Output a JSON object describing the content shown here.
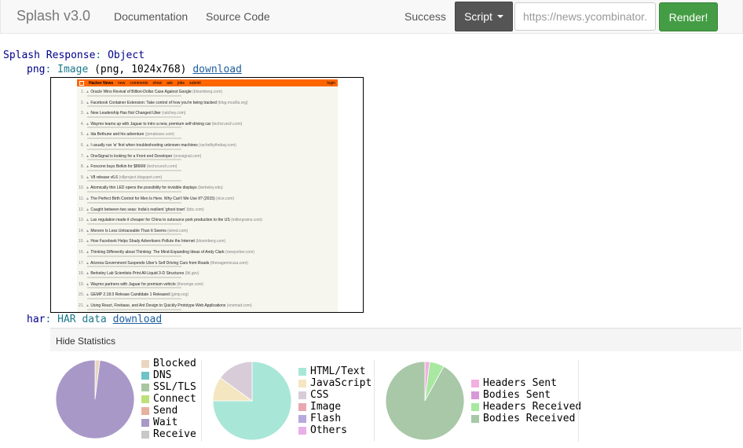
{
  "navbar": {
    "brand": "Splash v3.0",
    "links": [
      "Documentation",
      "Source Code"
    ],
    "status": "Success",
    "script_label": "Script",
    "url_value": "https://news.ycombinator.",
    "render_label": "Render!"
  },
  "response": {
    "title_key": "Splash Response",
    "title_type": "Object",
    "png_key": "png",
    "png_type": "Image",
    "png_meta": "(png, 1024x768)",
    "png_download": "download",
    "har_key": "har",
    "har_type": "HAR data",
    "har_download": "download"
  },
  "screenshot": {
    "nav": [
      "Hacker News",
      "new",
      "comments",
      "show",
      "ask",
      "jobs",
      "submit",
      "login"
    ],
    "items": [
      {
        "rank": "1.",
        "title": "Oracle Wins Revival of Billion-Dollar Case Against Google",
        "site": "(bloomberg.com)"
      },
      {
        "rank": "2.",
        "title": "Facebook Container Extension: Take control of how you're being tracked",
        "site": "(blog.mozilla.org)"
      },
      {
        "rank": "3.",
        "title": "New Leadership Has Not Changed Uber",
        "site": "(ratchey.com)"
      },
      {
        "rank": "4.",
        "title": "Waymo teams up with Jaguar to intro a new, premium self-driving car",
        "site": "(techcrunch.com)"
      },
      {
        "rank": "5.",
        "title": "Ida Bethune and his adventure",
        "site": "(jomalease.com)"
      },
      {
        "rank": "6.",
        "title": "I usually run 'w' first when troubleshooting unknown machines",
        "site": "(rachelbythebay.com)"
      },
      {
        "rank": "7.",
        "title": "OneSignal is looking for a Front end Developer",
        "site": "(onesignal.com)"
      },
      {
        "rank": "8.",
        "title": "Foxconn buys Belkin for $866M",
        "site": "(techcrunch.com)"
      },
      {
        "rank": "9.",
        "title": "V8 release v6.6",
        "site": "(v8project.blogspot.com)"
      },
      {
        "rank": "10.",
        "title": "Atomically thin LED opens the possibility for invisible displays",
        "site": "(berkeley.edu)"
      },
      {
        "rank": "11.",
        "title": "The Perfect Birth Control for Men Is Here. Why Can't We Use It? (2015)",
        "site": "(vice.com)"
      },
      {
        "rank": "12.",
        "title": "Caught between two seas: India's resilient 'ghost town'",
        "site": "(bbc.com)"
      },
      {
        "rank": "13.",
        "title": "Lax regulation made it cheaper for China to outsource pork production to the US",
        "site": "(millergrains.com)"
      },
      {
        "rank": "14.",
        "title": "Monero Is Less Untraceable Than It Seems",
        "site": "(wired.com)"
      },
      {
        "rank": "15.",
        "title": "How Facebook Helps Shady Advertisers Pollute the Internet",
        "site": "(bloomberg.com)"
      },
      {
        "rank": "16.",
        "title": "Thinking Differently about Thinking: The Mind-Expanding Ideas of Andy Clark",
        "site": "(newyorker.com)"
      },
      {
        "rank": "17.",
        "title": "Arizona Government Suspends Uber's Self Driving Cars from Roads",
        "site": "(thenagemicusa.com)"
      },
      {
        "rank": "18.",
        "title": "Berkeley Lab Scientists Print All-Liquid 3-D Structures",
        "site": "(lbl.gov)"
      },
      {
        "rank": "19.",
        "title": "Waymo partners with Jaguar for premium vehicle",
        "site": "(theverge.com)"
      },
      {
        "rank": "20.",
        "title": "GEMP 2.18.0 Release Candidate 1 Released",
        "site": "(gimp.org)"
      },
      {
        "rank": "21.",
        "title": "Using React, Firebase, and Ant Design to Quickly Prototype Web Applications",
        "site": "(xnomad.com)"
      }
    ]
  },
  "stats": {
    "toggle_label": "Hide Statistics",
    "timing": {
      "legend": [
        {
          "label": "Blocked",
          "color": "#e8d6c0"
        },
        {
          "label": "DNS",
          "color": "#6fc2c6"
        },
        {
          "label": "SSL/TLS",
          "color": "#a8c6a0"
        },
        {
          "label": "Connect",
          "color": "#bce07a"
        },
        {
          "label": "Send",
          "color": "#e8b0a0"
        },
        {
          "label": "Wait",
          "color": "#a898c8"
        },
        {
          "label": "Receive",
          "color": "#c8c8c8"
        }
      ],
      "slices": [
        {
          "label": "Wait",
          "fraction": 0.98,
          "color": "#a898c8"
        },
        {
          "label": "Blocked",
          "fraction": 0.02,
          "color": "#e8d6c0"
        }
      ]
    },
    "content_types": {
      "legend": [
        {
          "label": "HTML/Text",
          "color": "#a8e6d8"
        },
        {
          "label": "JavaScript",
          "color": "#f4e6c0"
        },
        {
          "label": "CSS",
          "color": "#d8ccd8"
        },
        {
          "label": "Image",
          "color": "#e8a8b0"
        },
        {
          "label": "Flash",
          "color": "#b8a8e0"
        },
        {
          "label": "Others",
          "color": "#e8b0e8"
        }
      ],
      "slices": [
        {
          "label": "HTML/Text",
          "fraction": 0.75,
          "color": "#a8e6d8"
        },
        {
          "label": "JavaScript",
          "fraction": 0.1,
          "color": "#f4e6c0"
        },
        {
          "label": "CSS",
          "fraction": 0.15,
          "color": "#d8ccd8"
        }
      ]
    },
    "sizes": {
      "legend": [
        {
          "label": "Headers Sent",
          "color": "#f2b0e0"
        },
        {
          "label": "Bodies Sent",
          "color": "#d898d8"
        },
        {
          "label": "Headers Received",
          "color": "#a8e8a0"
        },
        {
          "label": "Bodies Received",
          "color": "#a8c8a8"
        }
      ],
      "slices": [
        {
          "label": "Bodies Received",
          "fraction": 0.92,
          "color": "#a8c8a8"
        },
        {
          "label": "Headers Received",
          "fraction": 0.06,
          "color": "#a8e8a0"
        },
        {
          "label": "Headers Sent",
          "fraction": 0.02,
          "color": "#f2b0e0"
        }
      ]
    }
  }
}
